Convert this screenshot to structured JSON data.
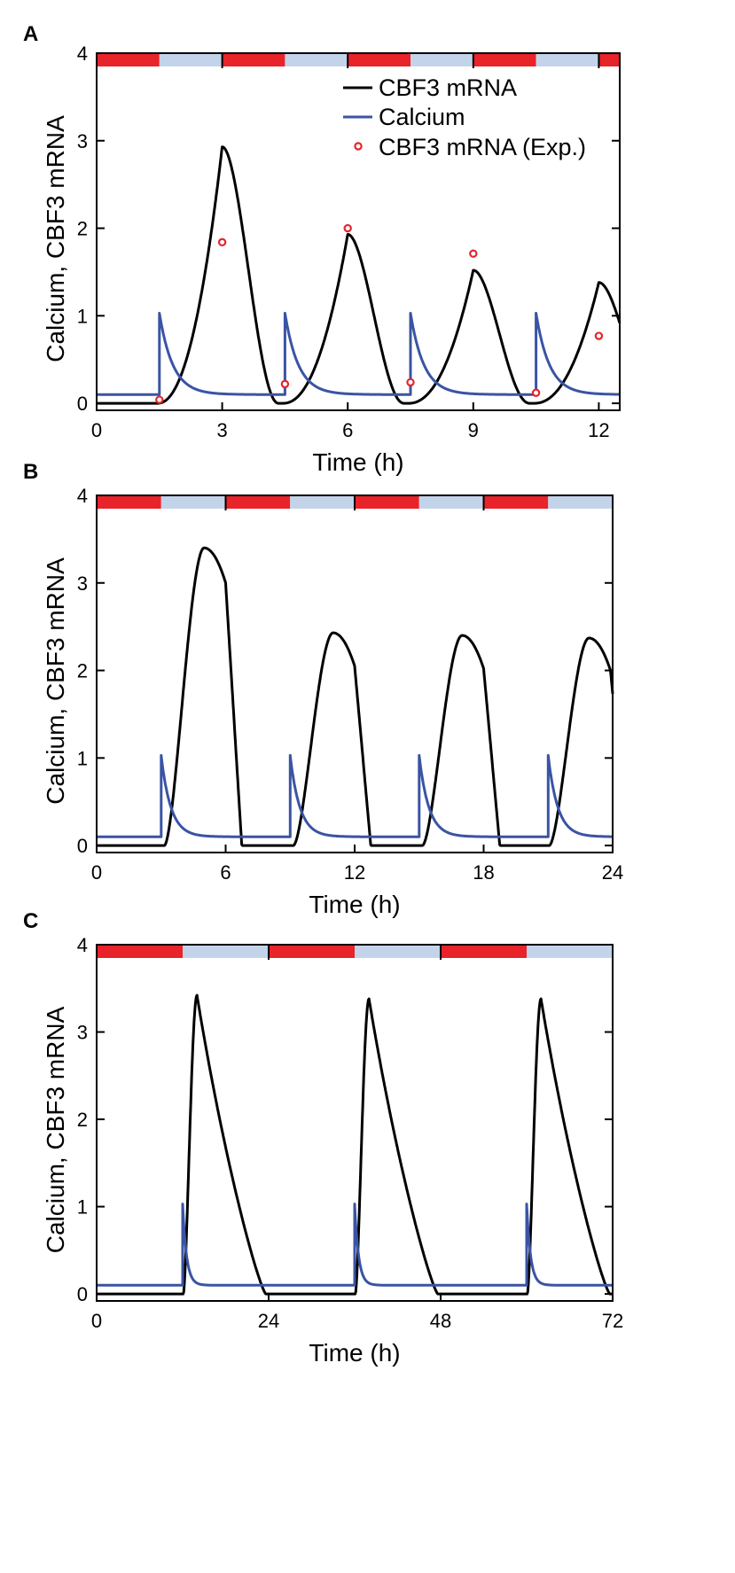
{
  "colors": {
    "light": "#e8232a",
    "dark": "#c3d4ea",
    "mrna": "#000000",
    "calcium": "#3a54a4",
    "exp": "#e8232a"
  },
  "legend": {
    "mrna": "CBF3 mRNA",
    "calcium": "Calcium",
    "exp": "CBF3 mRNA (Exp.)"
  },
  "chart_data": [
    {
      "panel": "A",
      "type": "line",
      "xlabel": "Time (h)",
      "ylabel": "Calcium, CBF3 mRNA",
      "xlim": [
        0,
        12.5
      ],
      "ylim": [
        -0.08,
        4
      ],
      "xticks": [
        0,
        3,
        6,
        9,
        12
      ],
      "xtick_labels": [
        "0",
        "3",
        "6",
        "9",
        "12"
      ],
      "yticks": [
        0,
        1,
        2,
        3,
        4
      ],
      "ytick_labels": [
        "0",
        "1",
        "2",
        "3",
        "4"
      ],
      "period_h": 3,
      "light_h": 1.5,
      "calcium_spikes_h": [
        1.5,
        4.5,
        7.5,
        10.5
      ],
      "mrna_peaks": [
        {
          "x": 3.0,
          "y": 2.93
        },
        {
          "x": 6.0,
          "y": 1.93
        },
        {
          "x": 9.0,
          "y": 1.52
        },
        {
          "x": 12.0,
          "y": 1.38
        }
      ],
      "experimental": {
        "x": [
          1.5,
          3,
          4.5,
          6,
          7.5,
          9,
          10.5,
          12
        ],
        "y": [
          0.04,
          1.84,
          0.22,
          2.0,
          0.24,
          1.71,
          0.12,
          0.77
        ]
      }
    },
    {
      "panel": "B",
      "type": "line",
      "xlabel": "Time (h)",
      "ylabel": "Calcium, CBF3 mRNA",
      "xlim": [
        0,
        24
      ],
      "ylim": [
        -0.08,
        4
      ],
      "xticks": [
        0,
        6,
        12,
        18,
        24
      ],
      "xtick_labels": [
        "0",
        "6",
        "12",
        "18",
        "24"
      ],
      "yticks": [
        0,
        1,
        2,
        3,
        4
      ],
      "ytick_labels": [
        "0",
        "1",
        "2",
        "3",
        "4"
      ],
      "period_h": 6,
      "light_h": 3,
      "calcium_spikes_h": [
        3,
        9,
        15,
        21
      ],
      "mrna_cycles": [
        {
          "peak_x": 5.0,
          "peak_y": 3.4,
          "end_y": 3.0
        },
        {
          "peak_x": 11.0,
          "peak_y": 2.43,
          "end_y": 2.05
        },
        {
          "peak_x": 17.0,
          "peak_y": 2.4,
          "end_y": 2.02
        },
        {
          "peak_x": 22.9,
          "peak_y": 2.37,
          "end_y": 2.0
        }
      ]
    },
    {
      "panel": "C",
      "type": "line",
      "xlabel": "Time (h)",
      "ylabel": "Calcium, CBF3 mRNA",
      "xlim": [
        0,
        72
      ],
      "ylim": [
        -0.08,
        4
      ],
      "xticks": [
        0,
        24,
        48,
        72
      ],
      "xtick_labels": [
        "0",
        "24",
        "48",
        "72"
      ],
      "yticks": [
        0,
        1,
        2,
        3,
        4
      ],
      "ytick_labels": [
        "0",
        "1",
        "2",
        "3",
        "4"
      ],
      "period_h": 24,
      "light_h": 12,
      "calcium_spikes_h": [
        12,
        36,
        60
      ],
      "mrna_peaks": [
        {
          "x": 14.0,
          "y": 3.42
        },
        {
          "x": 38.0,
          "y": 3.38
        },
        {
          "x": 62.0,
          "y": 3.38
        }
      ]
    }
  ]
}
